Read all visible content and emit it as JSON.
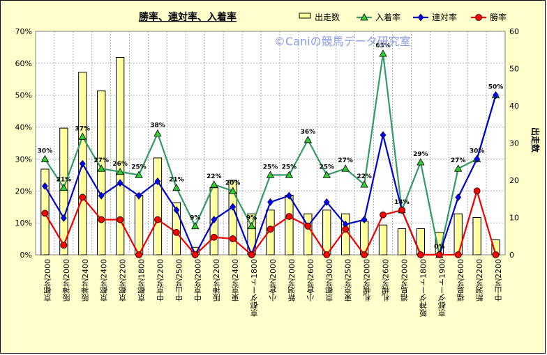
{
  "chart_data": {
    "type": "bar+line",
    "title": "勝率、連対率、入着率",
    "watermark": "©Caniの競馬データ研究室",
    "y2label": "出走数",
    "yticks": [
      "0%",
      "10%",
      "20%",
      "30%",
      "40%",
      "50%",
      "60%",
      "70%"
    ],
    "y2ticks": [
      "0",
      "10",
      "20",
      "30",
      "40",
      "50",
      "60"
    ],
    "ylim": [
      0,
      70
    ],
    "y2lim": [
      0,
      60
    ],
    "legend_position": "top-right",
    "categories": [
      "京都芝2000",
      "阪神芝2000",
      "阪神芝2400",
      "京都芝2400",
      "京都芝2200",
      "京都芝1800",
      "中京芝2200",
      "中山芝2500",
      "中京芝2000",
      "阪神芝2200",
      "東京芝2400",
      "京都ダート1800",
      "小倉芝2000",
      "新潟芝2000",
      "小倉芝2600",
      "京都芝3000",
      "東京芝2500",
      "札幌芝2000",
      "札幌芝2600",
      "福島芝2000",
      "阪神ダート1800",
      "京都ダート1900",
      "福島芝2600",
      "新潟芝2200",
      "中山芝2200"
    ],
    "bars": {
      "name": "出走数",
      "color": "#ffff99",
      "values": [
        23,
        34,
        49,
        44,
        53,
        16,
        26,
        14,
        2,
        18,
        20,
        11,
        12,
        16,
        11,
        12,
        11,
        9,
        8,
        7,
        7,
        6,
        11,
        10,
        4
      ]
    },
    "series": [
      {
        "name": "入着率",
        "color": "#339966",
        "values": [
          30,
          21,
          37,
          27,
          26,
          25,
          38,
          21,
          9,
          22,
          20,
          9,
          25,
          25,
          36,
          25,
          27,
          22,
          63,
          14,
          29,
          0,
          27,
          30,
          50
        ]
      },
      {
        "name": "連対率",
        "color": "#0000cc",
        "values": [
          21.5,
          11.5,
          28.5,
          18.5,
          22.5,
          18.5,
          23,
          14,
          0,
          11,
          15,
          0,
          16.5,
          18.5,
          9,
          16.5,
          9.5,
          11,
          37.5,
          14,
          0,
          0,
          18,
          30,
          50
        ]
      },
      {
        "name": "勝率",
        "color": "#ee0000",
        "values": [
          13,
          3,
          18,
          11,
          11,
          0,
          11,
          7,
          0,
          5.5,
          5,
          0,
          8,
          12,
          9,
          0,
          8,
          0,
          12.5,
          14,
          0,
          0,
          0,
          20,
          0
        ]
      }
    ],
    "data_labels": [
      "30%",
      "21%",
      "37%",
      "27%",
      "26%",
      "25%",
      "38%",
      "21%",
      "9%",
      "22%",
      "20%",
      "9%",
      "25%",
      "25%",
      "36%",
      "25%",
      "27%",
      "22%",
      "63%",
      "14%",
      "29%",
      "0%",
      "27%",
      "30%",
      "50%"
    ]
  }
}
